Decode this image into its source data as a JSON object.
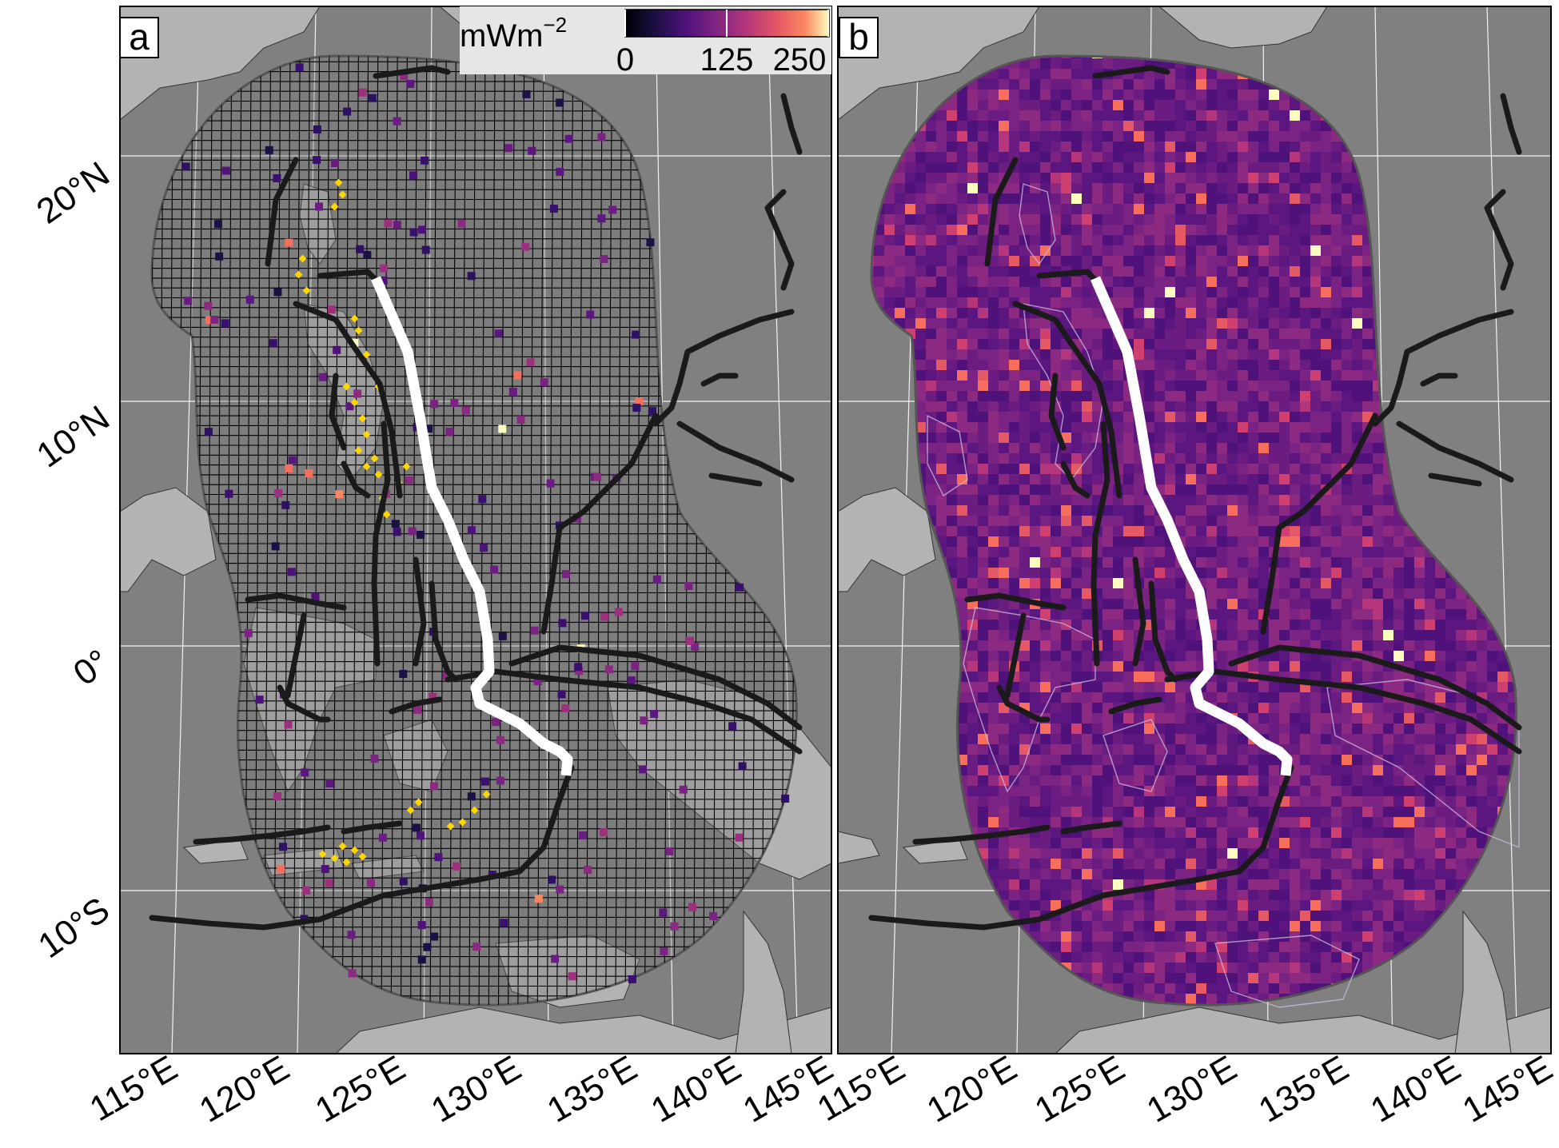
{
  "figure": {
    "panels": [
      {
        "id": "a",
        "label": "a"
      },
      {
        "id": "b",
        "label": "b"
      }
    ],
    "colorbar": {
      "unit_base": "mWm",
      "unit_exp": "−2",
      "ticks": [
        "0",
        "125",
        "250"
      ],
      "range": [
        0,
        250
      ],
      "colormap": "magma"
    },
    "latitude_labels": [
      "20°N",
      "10°N",
      "0°",
      "10°S"
    ],
    "longitude_labels": [
      "115°E",
      "120°E",
      "125°E",
      "130°E",
      "135°E",
      "140°E",
      "145°E"
    ]
  },
  "colors": {
    "ocean": "#808080",
    "land": "#b3b3b3",
    "plate_boundary": "#1a1a1a",
    "profile": "#ffffff",
    "highlight_points": "#ffd700",
    "grid": "#000000"
  }
}
